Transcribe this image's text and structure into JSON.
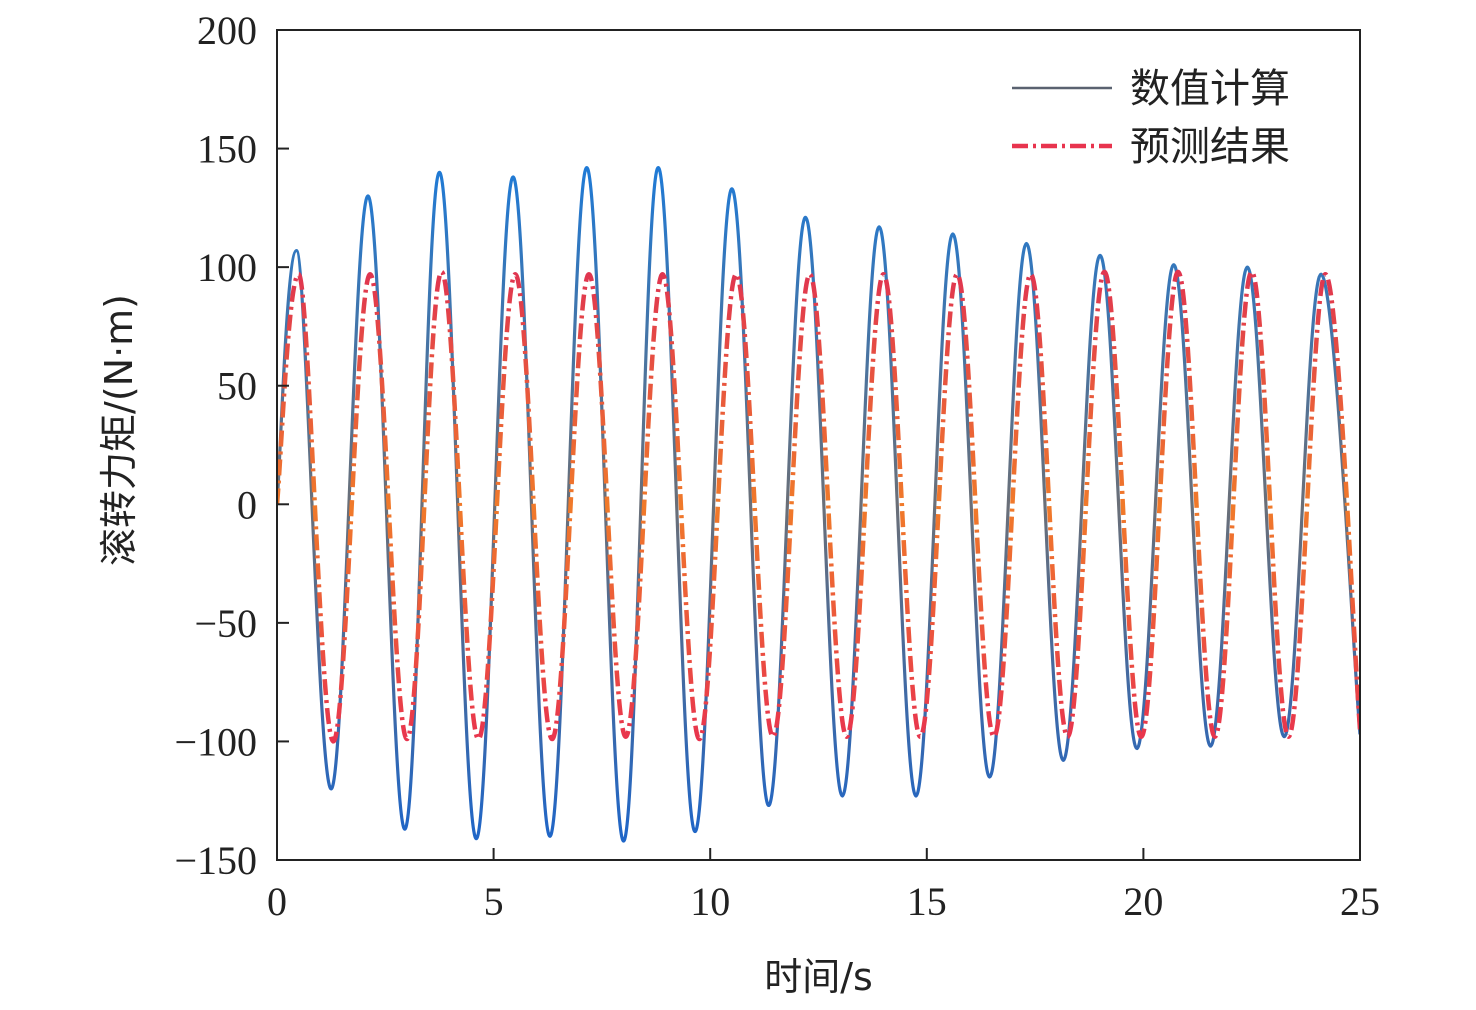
{
  "chart_data": {
    "type": "line",
    "title": "",
    "xlabel": "时间/s",
    "ylabel": "滚转力矩/(N·m)",
    "xlim": [
      0,
      25
    ],
    "ylim": [
      -150,
      200
    ],
    "xticks": [
      0,
      5,
      10,
      15,
      20,
      25
    ],
    "yticks": [
      -150,
      -100,
      -50,
      0,
      50,
      100,
      150,
      200
    ],
    "xtick_labels": [
      "0",
      "5",
      "10",
      "15",
      "20",
      "25"
    ],
    "ytick_labels": [
      "−150",
      "−100",
      "−50",
      "0",
      "50",
      "100",
      "150",
      "200"
    ],
    "grid": false,
    "legend_position": "top-right",
    "series": [
      {
        "name": "数值计算",
        "style": "solid",
        "color": "#1f5fb4",
        "x": [
          0,
          0.45,
          1.25,
          2.1,
          2.95,
          3.75,
          4.6,
          5.45,
          6.3,
          7.15,
          8.0,
          8.8,
          9.65,
          10.5,
          11.35,
          12.2,
          13.05,
          13.9,
          14.75,
          15.6,
          16.45,
          17.3,
          18.15,
          19.0,
          19.85,
          20.7,
          21.55,
          22.4,
          23.25,
          24.1,
          25.0
        ],
        "values": [
          0,
          107,
          -120,
          130,
          -137,
          140,
          -141,
          138,
          -140,
          142,
          -142,
          142,
          -138,
          133,
          -127,
          121,
          -123,
          117,
          -123,
          114,
          -115,
          110,
          -108,
          105,
          -103,
          101,
          -102,
          100,
          -98,
          97,
          -97
        ]
      },
      {
        "name": "预测结果",
        "style": "dashdot",
        "color": "#e8344e",
        "x": [
          0,
          0.5,
          1.3,
          2.15,
          3.0,
          3.8,
          4.65,
          5.5,
          6.35,
          7.2,
          8.05,
          8.9,
          9.75,
          10.6,
          11.45,
          12.3,
          13.15,
          14.0,
          14.85,
          15.7,
          16.55,
          17.4,
          18.25,
          19.1,
          19.95,
          20.8,
          21.65,
          22.5,
          23.35,
          24.2,
          25.0
        ],
        "values": [
          0,
          97,
          -100,
          97,
          -99,
          98,
          -99,
          97,
          -99,
          97,
          -98,
          97,
          -99,
          97,
          -98,
          97,
          -98,
          97,
          -98,
          97,
          -98,
          97,
          -98,
          98,
          -98,
          98,
          -98,
          98,
          -98,
          97,
          -95
        ]
      }
    ]
  }
}
